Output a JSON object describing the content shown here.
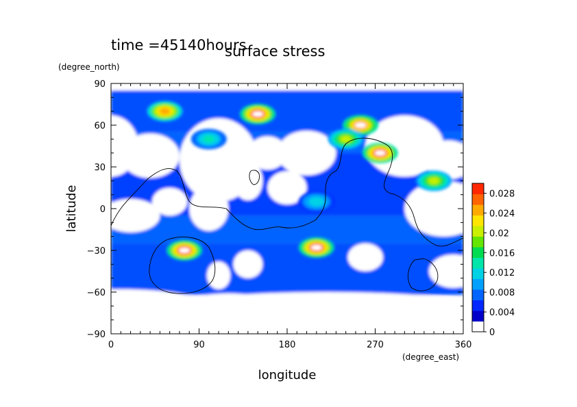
{
  "header": {
    "time_label": "time =45140hours",
    "title": "surface stress"
  },
  "chart_data": {
    "type": "heatmap",
    "title": "surface stress",
    "xlabel": "longitude",
    "ylabel": "latitude",
    "x_unit": "(degree_east)",
    "y_unit": "(degree_north)",
    "xlim": [
      0,
      360
    ],
    "ylim": [
      -90,
      90
    ],
    "x_ticks": [
      "0",
      "90",
      "180",
      "270",
      "360"
    ],
    "y_ticks": [
      "90",
      "60",
      "30",
      "0",
      "−30",
      "−60",
      "−90"
    ],
    "colorbar": {
      "range": [
        0,
        0.03
      ],
      "tick_labels": [
        "0.028",
        "0.024",
        "0.02",
        "0.016",
        "0.012",
        "0.008",
        "0.004",
        "0"
      ],
      "colors": [
        "#ffffff",
        "#0000c8",
        "#0028ff",
        "#0064ff",
        "#00a0ff",
        "#00d2e6",
        "#00e6aa",
        "#00dc50",
        "#64e600",
        "#c8f000",
        "#ffe600",
        "#ffaa00",
        "#ff6400",
        "#ff2800"
      ]
    },
    "hotspots": [
      {
        "lon": 55,
        "lat": 70,
        "value": 0.026
      },
      {
        "lon": 150,
        "lat": 68,
        "value": 0.03
      },
      {
        "lon": 255,
        "lat": 60,
        "value": 0.028
      },
      {
        "lon": 275,
        "lat": 40,
        "value": 0.03
      },
      {
        "lon": 330,
        "lat": 20,
        "value": 0.02
      },
      {
        "lon": 75,
        "lat": -30,
        "value": 0.03
      },
      {
        "lon": 210,
        "lat": -28,
        "value": 0.03
      },
      {
        "lon": 240,
        "lat": 50,
        "value": 0.02
      },
      {
        "lon": 100,
        "lat": 50,
        "value": 0.014
      },
      {
        "lon": 210,
        "lat": 5,
        "value": 0.012
      }
    ]
  }
}
